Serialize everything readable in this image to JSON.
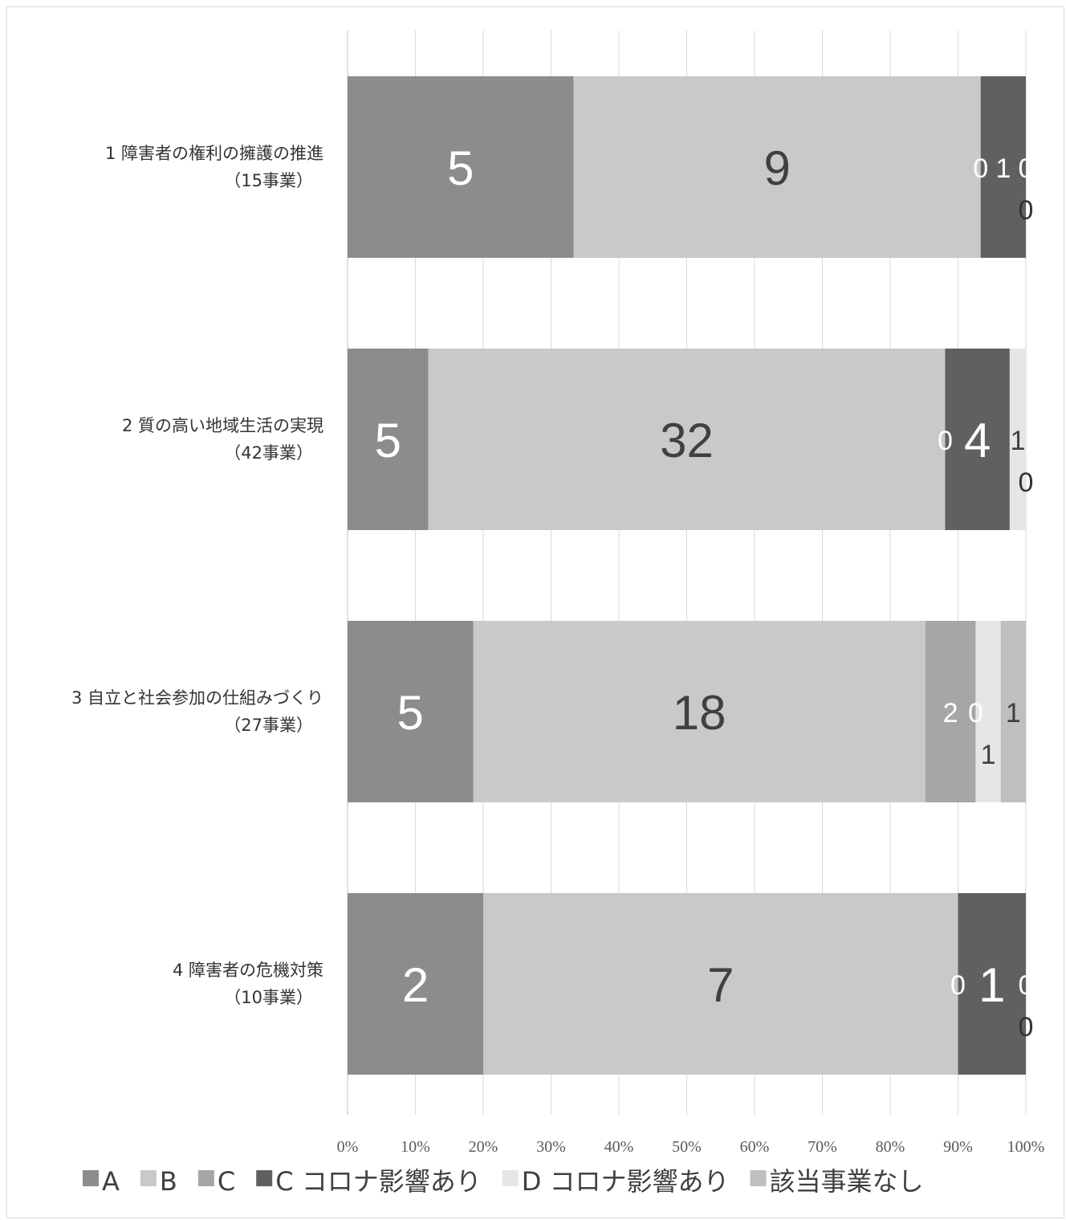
{
  "chart_data": {
    "type": "bar",
    "orientation": "horizontal",
    "stacking": "percent",
    "categories": [
      {
        "line1": "1 障害者の権利の擁護の推進",
        "line2": "（15事業）"
      },
      {
        "line1": "2 質の高い地域生活の実現",
        "line2": "（42事業）"
      },
      {
        "line1": "3 自立と社会参加の仕組みづくり",
        "line2": "（27事業）"
      },
      {
        "line1": "4 障害者の危機対策",
        "line2": "（10事業）"
      }
    ],
    "series": [
      {
        "name": "A",
        "color": "#8c8c8c",
        "label_color": "#ffffff",
        "values": [
          5,
          5,
          5,
          2
        ]
      },
      {
        "name": "B",
        "color": "#c9c9c9",
        "label_color": "#404040",
        "values": [
          9,
          32,
          18,
          7
        ]
      },
      {
        "name": "C",
        "color": "#a6a6a6",
        "label_color": "#ffffff",
        "values": [
          0,
          0,
          2,
          0
        ]
      },
      {
        "name": "C コロナ影響あり",
        "color": "#606060",
        "label_color": "#ffffff",
        "values": [
          1,
          4,
          0,
          1
        ]
      },
      {
        "name": "D コロナ影響あり",
        "color": "#e6e6e6",
        "label_color": "#404040",
        "values": [
          0,
          1,
          1,
          0
        ]
      },
      {
        "name": "該当事業なし",
        "color": "#bfbfbf",
        "label_color": "#404040",
        "values": [
          0,
          0,
          1,
          0
        ]
      }
    ],
    "xlim": [
      0,
      100
    ],
    "x_ticks": [
      "0%",
      "10%",
      "20%",
      "30%",
      "40%",
      "50%",
      "60%",
      "70%",
      "80%",
      "90%",
      "100%"
    ],
    "grid": true,
    "legend_position": "bottom"
  }
}
